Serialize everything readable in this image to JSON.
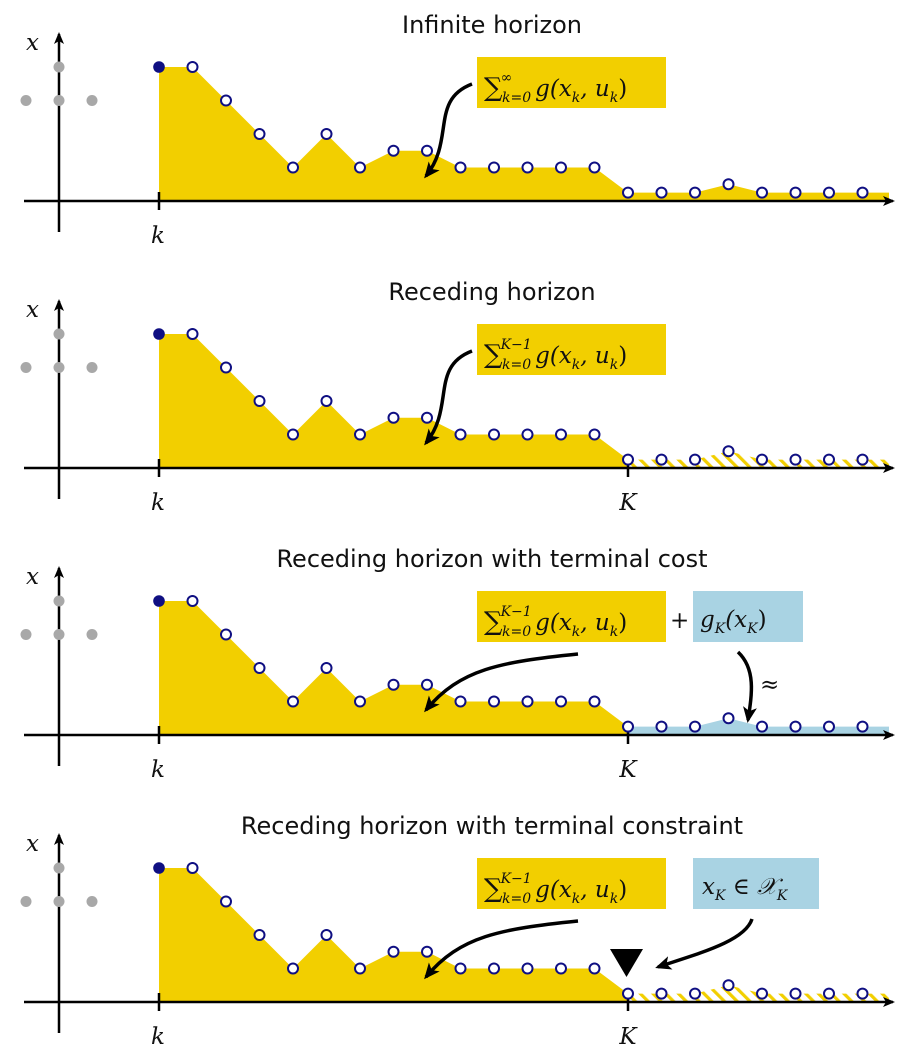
{
  "colors": {
    "stage_fill": "#f2cf00",
    "terminal_fill": "#a9d3e3",
    "point_stroke": "#0f0f82",
    "current_point": "#0f0f82",
    "past_point": "#a8a8a8",
    "axis": "#000000"
  },
  "labels": {
    "x": "x",
    "k": "k",
    "K": "K"
  },
  "sequence": {
    "values": [
      4,
      4,
      3,
      2,
      1,
      2,
      1,
      1.5,
      1.5,
      1,
      1,
      1,
      1,
      1,
      0.25,
      0.25,
      0.25,
      0.5,
      0.25,
      0.25,
      0.25,
      0.25
    ],
    "terminal_index": 14
  },
  "past_points": [
    {
      "t": -1,
      "v": 4
    },
    {
      "t": -3,
      "v": 3
    },
    {
      "t": -2,
      "v": 3
    },
    {
      "t": -1,
      "v": 3
    }
  ],
  "panels": [
    {
      "id": "infinite",
      "title": "Infinite horizon",
      "stage_cost": {
        "sum": "∑",
        "sup": "∞",
        "sub": "k=0",
        "term": "g(x",
        "sub_x": "k",
        "mid": ", u",
        "sub_u": "k",
        "end": ")"
      },
      "tail": "stage"
    },
    {
      "id": "receding",
      "title": "Receding horizon",
      "stage_cost": {
        "sum": "∑",
        "sup": "K−1",
        "sub": "k=0",
        "term": "g(x",
        "sub_x": "k",
        "mid": ", u",
        "sub_u": "k",
        "end": ")"
      },
      "tail": "hatch"
    },
    {
      "id": "terminal-cost",
      "title": "Receding horizon with terminal cost",
      "stage_cost": {
        "sum": "∑",
        "sup": "K−1",
        "sub": "k=0",
        "term": "g(x",
        "sub_x": "k",
        "mid": ", u",
        "sub_u": "k",
        "end": ")"
      },
      "plus": "+",
      "terminal_cost": {
        "g": "g",
        "sub_g": "K",
        "open": "(x",
        "sub_x": "K",
        "close": ")"
      },
      "approx": "≈",
      "tail": "terminal"
    },
    {
      "id": "terminal-constraint",
      "title": "Receding horizon with terminal constraint",
      "stage_cost": {
        "sum": "∑",
        "sup": "K−1",
        "sub": "k=0",
        "term": "g(x",
        "sub_x": "k",
        "mid": ", u",
        "sub_u": "k",
        "end": ")"
      },
      "constraint": {
        "x": "x",
        "sub_x": "K",
        "in": " ∈ ",
        "set": "𝒳",
        "sub_set": "K"
      },
      "tail": "hatch-constraint"
    }
  ]
}
